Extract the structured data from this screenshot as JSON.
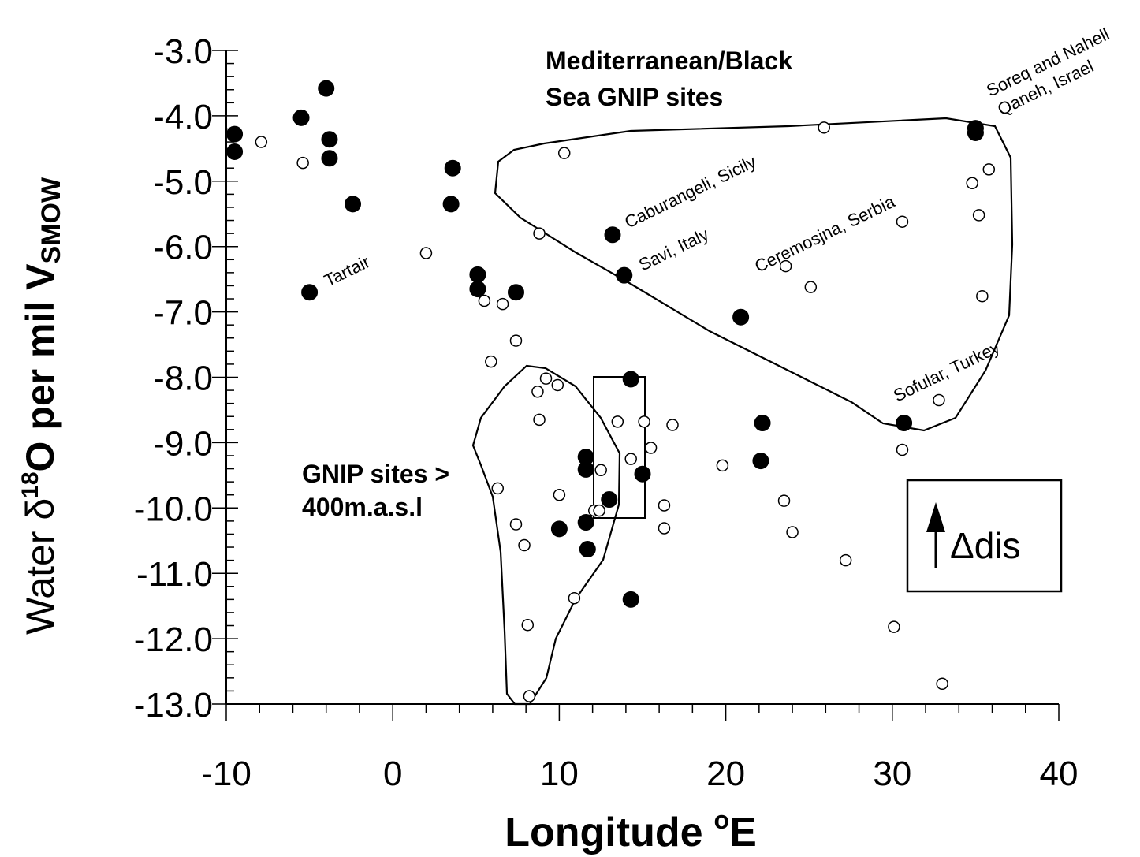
{
  "chart_data": {
    "type": "scatter",
    "title": "",
    "xlabel": "Longitude",
    "xlabel_unit": "E",
    "xlabel_unit_prefix": "o",
    "ylabel": {
      "prefix": "Water δ",
      "sup": "18",
      "main": "O per mil V",
      "sub": "SMOW"
    },
    "xlim": [
      -10,
      40
    ],
    "ylim": [
      -13.0,
      -3.0
    ],
    "x_ticks": [
      "-10",
      "0",
      "10",
      "20",
      "30",
      "40"
    ],
    "y_ticks": [
      "-3.0",
      "-4.0",
      "-5.0",
      "-6.0",
      "-7.0",
      "-8.0",
      "-9.0",
      "-10.0",
      "-11.0",
      "-12.0",
      "-13.0"
    ],
    "grid": false,
    "series": [
      {
        "marker": "filled-circle",
        "points": [
          [
            -9.5,
            -4.28
          ],
          [
            -9.5,
            -4.55
          ],
          [
            -5.5,
            -4.03
          ],
          [
            -4.0,
            -3.58
          ],
          [
            -3.8,
            -4.36
          ],
          [
            -3.8,
            -4.65
          ],
          [
            -2.4,
            -5.35
          ],
          [
            -5.0,
            -6.7
          ],
          [
            3.6,
            -4.8
          ],
          [
            3.5,
            -5.35
          ],
          [
            5.1,
            -6.43
          ],
          [
            5.1,
            -6.65
          ],
          [
            7.4,
            -6.7
          ],
          [
            13.2,
            -5.82
          ],
          [
            13.9,
            -6.44
          ],
          [
            20.9,
            -7.08
          ],
          [
            14.3,
            -8.03
          ],
          [
            22.2,
            -8.7
          ],
          [
            22.1,
            -9.28
          ],
          [
            11.6,
            -9.22
          ],
          [
            11.6,
            -9.41
          ],
          [
            15.0,
            -9.48
          ],
          [
            13.0,
            -9.87
          ],
          [
            11.6,
            -10.22
          ],
          [
            10.0,
            -10.32
          ],
          [
            11.7,
            -10.63
          ],
          [
            14.3,
            -11.4
          ],
          [
            30.7,
            -8.7
          ],
          [
            35.0,
            -4.19
          ],
          [
            35.0,
            -4.26
          ]
        ]
      },
      {
        "marker": "open-circle",
        "points": [
          [
            -7.9,
            -4.4
          ],
          [
            -5.4,
            -4.72
          ],
          [
            2.0,
            -6.1
          ],
          [
            5.5,
            -6.83
          ],
          [
            6.6,
            -6.88
          ],
          [
            8.8,
            -5.8
          ],
          [
            10.3,
            -4.57
          ],
          [
            25.9,
            -4.18
          ],
          [
            35.8,
            -4.82
          ],
          [
            34.8,
            -5.03
          ],
          [
            35.2,
            -5.52
          ],
          [
            30.6,
            -5.62
          ],
          [
            23.6,
            -6.3
          ],
          [
            25.1,
            -6.62
          ],
          [
            35.4,
            -6.76
          ],
          [
            7.4,
            -7.44
          ],
          [
            5.9,
            -7.76
          ],
          [
            9.2,
            -8.02
          ],
          [
            9.9,
            -8.12
          ],
          [
            8.7,
            -8.22
          ],
          [
            8.8,
            -8.65
          ],
          [
            13.5,
            -8.68
          ],
          [
            15.1,
            -8.68
          ],
          [
            16.8,
            -8.73
          ],
          [
            15.5,
            -9.08
          ],
          [
            14.3,
            -9.25
          ],
          [
            12.5,
            -9.42
          ],
          [
            19.8,
            -9.35
          ],
          [
            6.3,
            -9.7
          ],
          [
            10.0,
            -9.8
          ],
          [
            23.5,
            -9.89
          ],
          [
            16.3,
            -9.96
          ],
          [
            12.1,
            -10.04
          ],
          [
            12.4,
            -10.04
          ],
          [
            7.4,
            -10.25
          ],
          [
            16.3,
            -10.31
          ],
          [
            24.0,
            -10.37
          ],
          [
            7.9,
            -10.57
          ],
          [
            27.2,
            -10.8
          ],
          [
            10.9,
            -11.38
          ],
          [
            8.1,
            -11.79
          ],
          [
            30.1,
            -11.82
          ],
          [
            8.2,
            -12.88
          ],
          [
            33.0,
            -12.69
          ],
          [
            30.6,
            -9.11
          ],
          [
            32.8,
            -8.35
          ]
        ]
      }
    ],
    "region_labels": {
      "mediterranean_line1": "Mediterranean/Black",
      "mediterranean_line2": "Sea GNIP sites",
      "gnip_line1": "GNIP sites >",
      "gnip_line2": "400m.a.s.l"
    },
    "site_labels": {
      "tartair": "Tartair",
      "caburangeli": "Caburangeli, Sicily",
      "savi": "Savi, Italy",
      "ceremosjna": "Ceremosjna, Serbia",
      "sofular": "Sofular, Turkey",
      "soreq": "Soreq and Nahell",
      "qaneh": "Qaneh, Israel"
    },
    "legend": {
      "symbol": "Δ",
      "sub": "dis"
    }
  }
}
